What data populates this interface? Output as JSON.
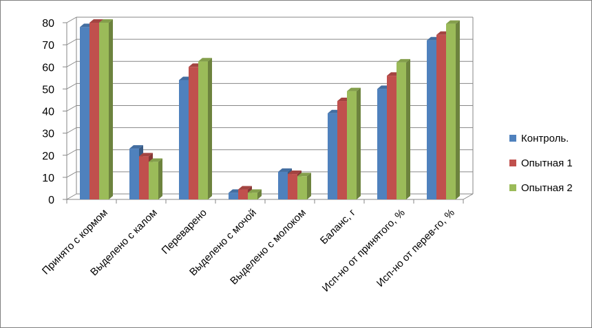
{
  "chart_data": {
    "type": "bar",
    "title": "",
    "xlabel": "",
    "ylabel": "",
    "ylim": [
      0,
      80
    ],
    "yticks": [
      0,
      10,
      20,
      30,
      40,
      50,
      60,
      70,
      80
    ],
    "grid": true,
    "legend_position": "right",
    "categories": [
      "Принято с кормом",
      "Выделено с калом",
      "Переварено",
      "Выделено с мочой",
      "Выделено с молоком",
      "Баланс, г",
      "Исп-но от принятого, %",
      "Исп-но от перев-го, %"
    ],
    "series": [
      {
        "name": "Контроль.",
        "color": "#4f81bd",
        "values": [
          78,
          23,
          54,
          3,
          12.5,
          39,
          50,
          72
        ]
      },
      {
        "name": "Опытная 1",
        "color": "#c0504d",
        "values": [
          80,
          19.5,
          60,
          4.5,
          11.5,
          44.5,
          56,
          74.5
        ]
      },
      {
        "name": "Опытная 2",
        "color": "#9bbb59",
        "values": [
          80,
          17,
          62.5,
          3,
          10.5,
          49,
          62,
          79.5
        ]
      }
    ]
  }
}
